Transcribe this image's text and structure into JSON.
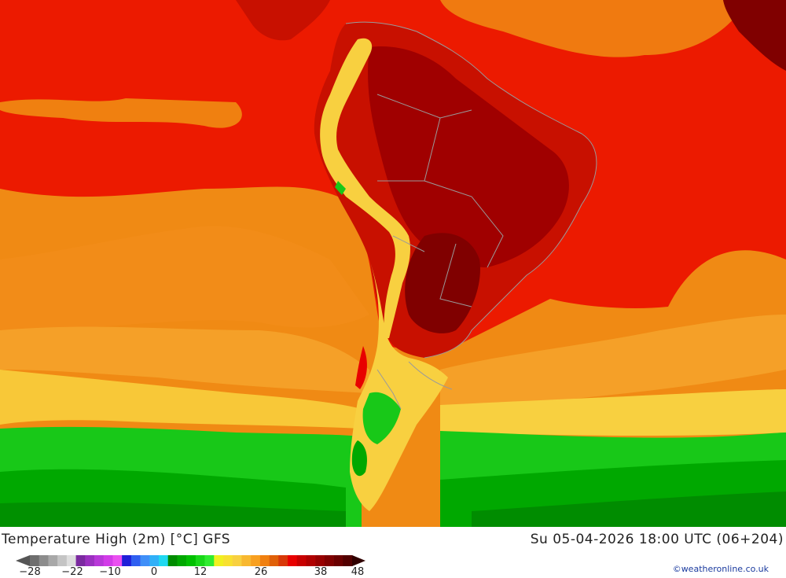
{
  "map": {
    "region": "South America",
    "icon": "temperature-map"
  },
  "footer": {
    "title": "Temperature High (2m) [°C] GFS",
    "datetime": "Su 05-04-2026 18:00 UTC (06+204)",
    "credit": "©weatheronline.co.uk"
  },
  "legend": {
    "ticks": [
      "−28",
      "−22",
      "−10",
      "0",
      "12",
      "26",
      "38",
      "48"
    ],
    "colors": [
      "#6e6e6e",
      "#8c8c8c",
      "#a8a8a8",
      "#c4c4c4",
      "#dedede",
      "#7b2aa0",
      "#9b30c0",
      "#b838d8",
      "#d23ce8",
      "#ea50f0",
      "#1f1fd8",
      "#2f5ff0",
      "#3f8ff8",
      "#30b0f8",
      "#20d8f0",
      "#008c00",
      "#00a800",
      "#00c000",
      "#18d818",
      "#30ec30",
      "#f0f020",
      "#f8e030",
      "#f8d040",
      "#f8b830",
      "#f8a020",
      "#f08010",
      "#e06008",
      "#d83808",
      "#e80000",
      "#c80000",
      "#b00000",
      "#980000",
      "#800000",
      "#6a0000",
      "#520000"
    ]
  }
}
